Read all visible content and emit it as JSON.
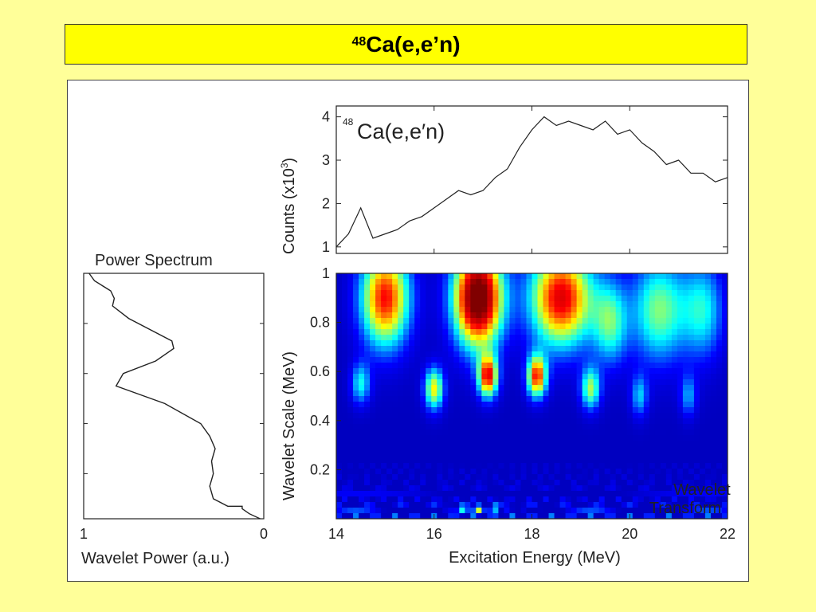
{
  "slide": {
    "title_sup": "48",
    "title_main": "Ca(e,e’n)"
  },
  "chart_data": [
    {
      "type": "line",
      "annotation_sup": "48",
      "annotation_main": "Ca(e,e′n)",
      "ylabel": "Counts (x10",
      "ylabel_sup": "3",
      "ylabel_end": ")",
      "xlim": [
        14,
        22
      ],
      "ylim": [
        0.85,
        4.25
      ],
      "yticks": [
        "1",
        "2",
        "3",
        "4"
      ],
      "series": [
        {
          "x": [
            14,
            14.25,
            14.5,
            14.75,
            15,
            15.25,
            15.5,
            15.75,
            16,
            16.25,
            16.5,
            16.75,
            17,
            17.25,
            17.5,
            17.75,
            18,
            18.25,
            18.5,
            18.75,
            19,
            19.25,
            19.5,
            19.75,
            20,
            20.25,
            20.5,
            20.75,
            21,
            21.25,
            21.5,
            21.75,
            22
          ],
          "y": [
            1.0,
            1.3,
            1.9,
            1.2,
            1.3,
            1.4,
            1.6,
            1.7,
            1.9,
            2.1,
            2.3,
            2.2,
            2.3,
            2.6,
            2.8,
            3.3,
            3.7,
            4.0,
            3.8,
            3.9,
            3.8,
            3.7,
            3.9,
            3.6,
            3.7,
            3.4,
            3.2,
            2.9,
            3.0,
            2.7,
            2.7,
            2.5,
            2.6
          ]
        }
      ]
    },
    {
      "type": "heatmap",
      "xlabel": "Excitation Energy (MeV)",
      "ylabel": "Wavelet Scale (MeV)",
      "xlim": [
        14,
        22
      ],
      "ylim": [
        0,
        1
      ],
      "xticks": [
        "14",
        "16",
        "18",
        "20",
        "22"
      ],
      "yticks": [
        "0.2",
        "0.4",
        "0.6",
        "0.8",
        "1"
      ],
      "label_line1": "Wavelet",
      "label_line2": "Transform",
      "label_color": "#ffd21a",
      "colormap": [
        "#000080",
        "#0000ff",
        "#00ffff",
        "#ffff00",
        "#ff0000",
        "#800000"
      ],
      "blobs": [
        {
          "x": 16.9,
          "y": 0.9,
          "sx": 0.35,
          "sy": 0.14,
          "amp": 1.0
        },
        {
          "x": 15.0,
          "y": 0.9,
          "sx": 0.35,
          "sy": 0.14,
          "amp": 0.7
        },
        {
          "x": 18.6,
          "y": 0.9,
          "sx": 0.45,
          "sy": 0.14,
          "amp": 0.75
        },
        {
          "x": 20.6,
          "y": 0.85,
          "sx": 0.4,
          "sy": 0.15,
          "amp": 0.4
        },
        {
          "x": 19.6,
          "y": 0.8,
          "sx": 0.25,
          "sy": 0.12,
          "amp": 0.35
        },
        {
          "x": 21.5,
          "y": 0.85,
          "sx": 0.3,
          "sy": 0.14,
          "amp": 0.3
        },
        {
          "x": 17.1,
          "y": 0.58,
          "sx": 0.14,
          "sy": 0.06,
          "amp": 0.7
        },
        {
          "x": 18.1,
          "y": 0.58,
          "sx": 0.14,
          "sy": 0.06,
          "amp": 0.68
        },
        {
          "x": 16.0,
          "y": 0.53,
          "sx": 0.14,
          "sy": 0.06,
          "amp": 0.5
        },
        {
          "x": 19.2,
          "y": 0.53,
          "sx": 0.14,
          "sy": 0.06,
          "amp": 0.42
        },
        {
          "x": 14.5,
          "y": 0.55,
          "sx": 0.14,
          "sy": 0.06,
          "amp": 0.3
        },
        {
          "x": 20.2,
          "y": 0.5,
          "sx": 0.12,
          "sy": 0.06,
          "amp": 0.25
        },
        {
          "x": 21.2,
          "y": 0.5,
          "sx": 0.12,
          "sy": 0.06,
          "amp": 0.22
        }
      ]
    },
    {
      "type": "line",
      "title": "Power Spectrum",
      "xlabel": "Wavelet Power (a.u.)",
      "xticks": [
        "1",
        "0"
      ],
      "xlim": [
        1,
        0
      ],
      "ylim": [
        0.02,
        1
      ],
      "series": [
        {
          "x": [
            0.02,
            0.08,
            0.12,
            0.12,
            0.15,
            0.2,
            0.28,
            0.3,
            0.28,
            0.29,
            0.27,
            0.3,
            0.35,
            0.55,
            0.82,
            0.78,
            0.6,
            0.5,
            0.51,
            0.75,
            0.84,
            0.83,
            0.85,
            0.94,
            0.97
          ],
          "y": [
            0.02,
            0.04,
            0.06,
            0.07,
            0.07,
            0.07,
            0.1,
            0.15,
            0.2,
            0.25,
            0.3,
            0.35,
            0.4,
            0.48,
            0.55,
            0.6,
            0.65,
            0.7,
            0.73,
            0.82,
            0.87,
            0.9,
            0.93,
            0.97,
            1.0
          ]
        }
      ]
    }
  ]
}
